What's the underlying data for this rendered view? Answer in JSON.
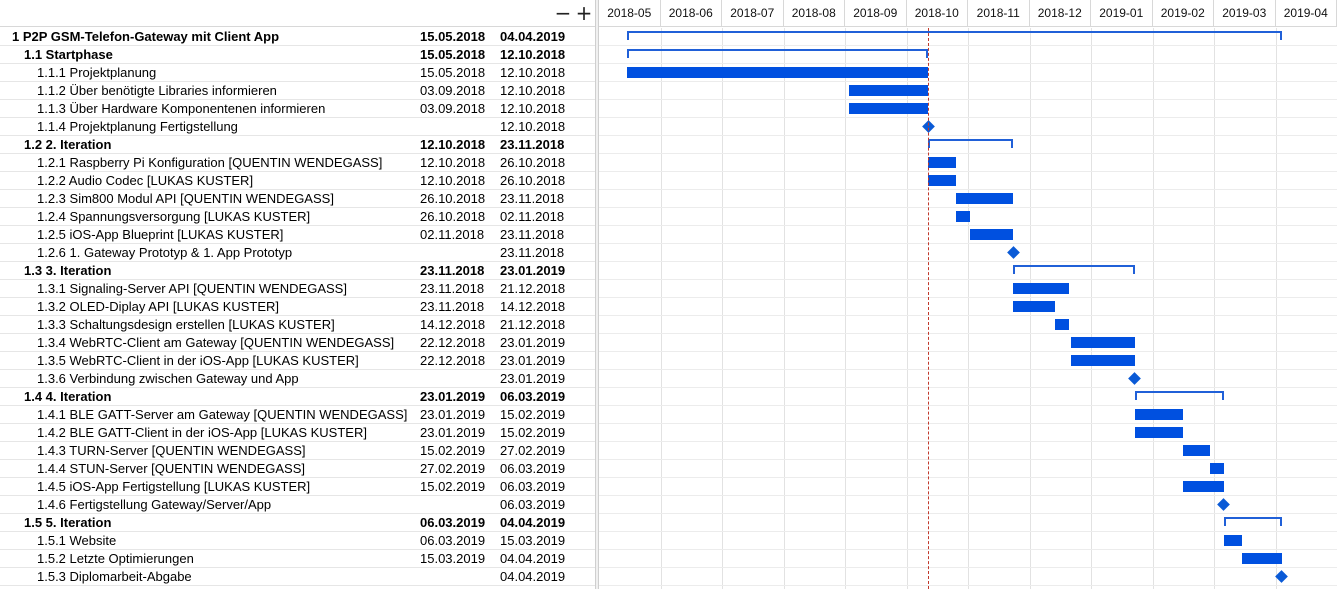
{
  "toolbar": {
    "zoom_out_label": "−",
    "zoom_in_label": "+"
  },
  "chart_data": {
    "type": "gantt",
    "today": "2018-10-12",
    "months": [
      "2018-05",
      "2018-06",
      "2018-07",
      "2018-08",
      "2018-09",
      "2018-10",
      "2018-11",
      "2018-12",
      "2019-01",
      "2019-02",
      "2019-03",
      "2019-04"
    ],
    "tasks": [
      {
        "name": "1 P2P GSM-Telefon-Gateway mit Client App",
        "start": "15.05.2018",
        "end": "04.04.2019",
        "kind": "summary",
        "level": 0,
        "bold": true
      },
      {
        "name": "1.1 Startphase",
        "start": "15.05.2018",
        "end": "12.10.2018",
        "kind": "summary",
        "level": 1,
        "bold": true
      },
      {
        "name": "1.1.1 Projektplanung",
        "start": "15.05.2018",
        "end": "12.10.2018",
        "kind": "task",
        "level": 2
      },
      {
        "name": "1.1.2 Über benötigte Libraries informieren",
        "start": "03.09.2018",
        "end": "12.10.2018",
        "kind": "task",
        "level": 2
      },
      {
        "name": "1.1.3 Über Hardware Komponentenen informieren",
        "start": "03.09.2018",
        "end": "12.10.2018",
        "kind": "task",
        "level": 2
      },
      {
        "name": "1.1.4 Projektplanung Fertigstellung",
        "start": "",
        "end": "12.10.2018",
        "kind": "milestone",
        "level": 2
      },
      {
        "name": "1.2 2. Iteration",
        "start": "12.10.2018",
        "end": "23.11.2018",
        "kind": "summary",
        "level": 1,
        "bold": true
      },
      {
        "name": "1.2.1 Raspberry Pi Konfiguration [QUENTIN WENDEGASS]",
        "start": "12.10.2018",
        "end": "26.10.2018",
        "kind": "task",
        "level": 2
      },
      {
        "name": "1.2.2 Audio Codec [LUKAS KUSTER]",
        "start": "12.10.2018",
        "end": "26.10.2018",
        "kind": "task",
        "level": 2
      },
      {
        "name": "1.2.3 Sim800 Modul API [QUENTIN WENDEGASS]",
        "start": "26.10.2018",
        "end": "23.11.2018",
        "kind": "task",
        "level": 2
      },
      {
        "name": "1.2.4 Spannungsversorgung [LUKAS KUSTER]",
        "start": "26.10.2018",
        "end": "02.11.2018",
        "kind": "task",
        "level": 2
      },
      {
        "name": "1.2.5 iOS-App Blueprint [LUKAS KUSTER]",
        "start": "02.11.2018",
        "end": "23.11.2018",
        "kind": "task",
        "level": 2
      },
      {
        "name": "1.2.6 1. Gateway Prototyp & 1. App Prototyp",
        "start": "",
        "end": "23.11.2018",
        "kind": "milestone",
        "level": 2
      },
      {
        "name": "1.3 3. Iteration",
        "start": "23.11.2018",
        "end": "23.01.2019",
        "kind": "summary",
        "level": 1,
        "bold": true
      },
      {
        "name": "1.3.1 Signaling-Server API [QUENTIN WENDEGASS]",
        "start": "23.11.2018",
        "end": "21.12.2018",
        "kind": "task",
        "level": 2
      },
      {
        "name": "1.3.2 OLED-Diplay API [LUKAS KUSTER]",
        "start": "23.11.2018",
        "end": "14.12.2018",
        "kind": "task",
        "level": 2
      },
      {
        "name": "1.3.3 Schaltungsdesign erstellen [LUKAS KUSTER]",
        "start": "14.12.2018",
        "end": "21.12.2018",
        "kind": "task",
        "level": 2
      },
      {
        "name": "1.3.4 WebRTC-Client am Gateway [QUENTIN WENDEGASS]",
        "start": "22.12.2018",
        "end": "23.01.2019",
        "kind": "task",
        "level": 2
      },
      {
        "name": "1.3.5 WebRTC-Client in der iOS-App [LUKAS KUSTER]",
        "start": "22.12.2018",
        "end": "23.01.2019",
        "kind": "task",
        "level": 2
      },
      {
        "name": "1.3.6 Verbindung zwischen Gateway und App",
        "start": "",
        "end": "23.01.2019",
        "kind": "milestone",
        "level": 2
      },
      {
        "name": "1.4 4. Iteration",
        "start": "23.01.2019",
        "end": "06.03.2019",
        "kind": "summary",
        "level": 1,
        "bold": true
      },
      {
        "name": "1.4.1 BLE GATT-Server am Gateway [QUENTIN WENDEGASS]",
        "start": "23.01.2019",
        "end": "15.02.2019",
        "kind": "task",
        "level": 2
      },
      {
        "name": "1.4.2 BLE GATT-Client in der iOS-App [LUKAS KUSTER]",
        "start": "23.01.2019",
        "end": "15.02.2019",
        "kind": "task",
        "level": 2
      },
      {
        "name": "1.4.3 TURN-Server [QUENTIN WENDEGASS]",
        "start": "15.02.2019",
        "end": "27.02.2019",
        "kind": "task",
        "level": 2
      },
      {
        "name": "1.4.4 STUN-Server [QUENTIN WENDEGASS]",
        "start": "27.02.2019",
        "end": "06.03.2019",
        "kind": "task",
        "level": 2
      },
      {
        "name": "1.4.5 iOS-App Fertigstellung [LUKAS KUSTER]",
        "start": "15.02.2019",
        "end": "06.03.2019",
        "kind": "task",
        "level": 2
      },
      {
        "name": "1.4.6 Fertigstellung Gateway/Server/App",
        "start": "",
        "end": "06.03.2019",
        "kind": "milestone",
        "level": 2
      },
      {
        "name": "1.5 5. Iteration",
        "start": "06.03.2019",
        "end": "04.04.2019",
        "kind": "summary",
        "level": 1,
        "bold": true
      },
      {
        "name": "1.5.1 Website",
        "start": "06.03.2019",
        "end": "15.03.2019",
        "kind": "task",
        "level": 2
      },
      {
        "name": "1.5.2 Letzte Optimierungen",
        "start": "15.03.2019",
        "end": "04.04.2019",
        "kind": "task",
        "level": 2
      },
      {
        "name": "1.5.3 Diplomarbeit-Abgabe",
        "start": "",
        "end": "04.04.2019",
        "kind": "milestone",
        "level": 2
      }
    ]
  }
}
